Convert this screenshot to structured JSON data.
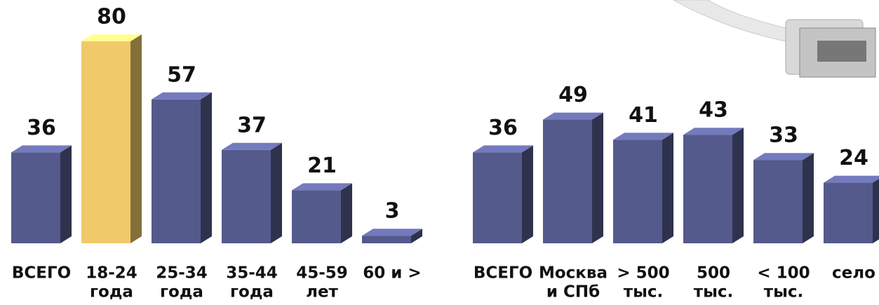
{
  "chart_data": [
    {
      "type": "bar3d",
      "categories": [
        [
          "ВСЕГО"
        ],
        [
          "18-24",
          "года"
        ],
        [
          "25-34",
          "года"
        ],
        [
          "35-44",
          "года"
        ],
        [
          "45-59",
          "лет"
        ],
        [
          "60 и >"
        ]
      ],
      "values": [
        36,
        80,
        57,
        37,
        21,
        3
      ],
      "colors": [
        "#555a8c",
        "#f0c96a",
        "#555a8c",
        "#555a8c",
        "#555a8c",
        "#555a8c"
      ]
    },
    {
      "type": "bar3d",
      "categories": [
        [
          "ВСЕГО"
        ],
        [
          "Москва",
          "и СПб"
        ],
        [
          "> 500",
          "тыс."
        ],
        [
          "500",
          "тыс."
        ],
        [
          "< 100",
          "тыс."
        ],
        [
          "село"
        ]
      ],
      "values": [
        36,
        49,
        41,
        43,
        33,
        24
      ],
      "colors": [
        "#555a8c",
        "#555a8c",
        "#555a8c",
        "#555a8c",
        "#555a8c",
        "#555a8c"
      ]
    }
  ]
}
